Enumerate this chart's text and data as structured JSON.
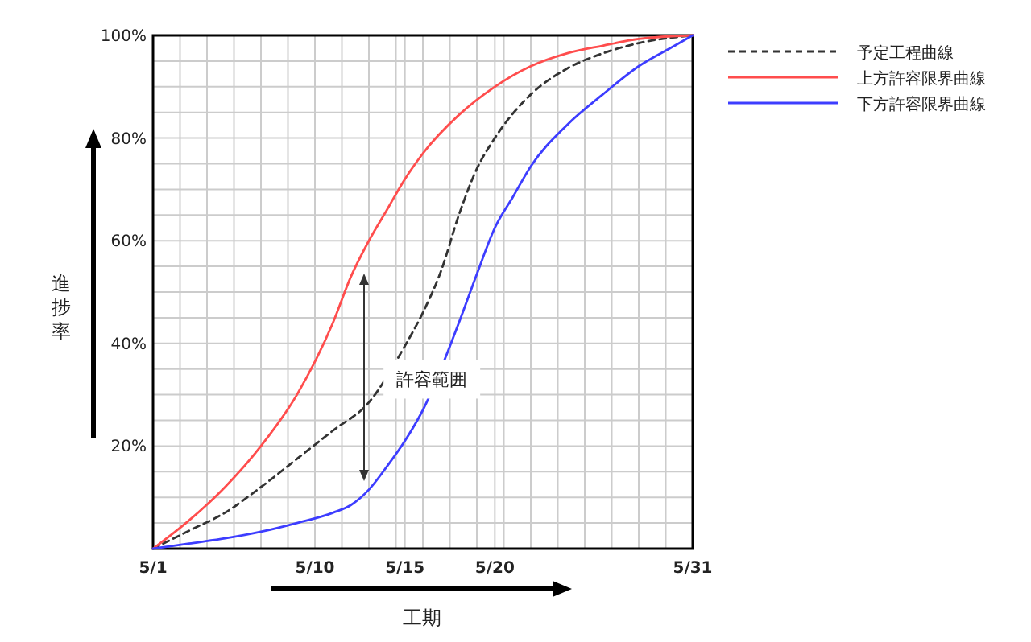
{
  "chart_data": {
    "type": "line",
    "xlabel": "工期",
    "ylabel": "進捗率",
    "xlim": [
      "--05-01",
      "--05-31"
    ],
    "xticks": [
      {
        "value": "--05-01",
        "label": "5/1"
      },
      {
        "value": "--05-02T12:00",
        "label": null
      },
      {
        "value": "--05-04",
        "label": null
      },
      {
        "value": "--05-05T12:00",
        "label": null
      },
      {
        "value": "--05-07",
        "label": null
      },
      {
        "value": "--05-08T12:00",
        "label": null
      },
      {
        "value": "--05-10",
        "label": "5/10"
      },
      {
        "value": "--05-11T12:00",
        "label": null
      },
      {
        "value": "--05-13",
        "label": null
      },
      {
        "value": "--05-14T12:00",
        "label": null
      },
      {
        "value": "--05-15",
        "label": "5/15"
      },
      {
        "value": "--05-16",
        "label": null
      },
      {
        "value": "--05-17T12:00",
        "label": null
      },
      {
        "value": "--05-19",
        "label": null
      },
      {
        "value": "--05-20",
        "label": "5/20"
      },
      {
        "value": "--05-20T12:00",
        "label": null
      },
      {
        "value": "--05-22",
        "label": null
      },
      {
        "value": "--05-23T12:00",
        "label": null
      },
      {
        "value": "--05-25",
        "label": null
      },
      {
        "value": "--05-26T12:00",
        "label": null
      },
      {
        "value": "--05-28",
        "label": null
      },
      {
        "value": "--05-29T12:00",
        "label": null
      },
      {
        "value": "--05-31",
        "label": "5/31"
      }
    ],
    "ylim": [
      0,
      100
    ],
    "yticks": [
      {
        "value": 0,
        "label": null
      },
      {
        "value": 5,
        "label": null
      },
      {
        "value": 10,
        "label": null
      },
      {
        "value": 15,
        "label": null
      },
      {
        "value": 20,
        "label": "20%"
      },
      {
        "value": 25,
        "label": null
      },
      {
        "value": 30,
        "label": null
      },
      {
        "value": 35,
        "label": null
      },
      {
        "value": 40,
        "label": "40%"
      },
      {
        "value": 45,
        "label": null
      },
      {
        "value": 50,
        "label": null
      },
      {
        "value": 55,
        "label": null
      },
      {
        "value": 60,
        "label": "60%"
      },
      {
        "value": 65,
        "label": null
      },
      {
        "value": 70,
        "label": null
      },
      {
        "value": 75,
        "label": null
      },
      {
        "value": 80,
        "label": "80%"
      },
      {
        "value": 85,
        "label": null
      },
      {
        "value": 90,
        "label": null
      },
      {
        "value": 95,
        "label": null
      },
      {
        "value": 100,
        "label": "100%"
      }
    ],
    "grid": true,
    "legend": "top right",
    "marker": "none",
    "annotations": [
      {
        "text": "許容範囲",
        "x": "--05-16T12:00",
        "y": 33
      }
    ],
    "series": [
      {
        "name": "予定工程曲線",
        "color": "#333333",
        "line_style": "dashed",
        "x": [
          "--05-01",
          "--05-03",
          "--05-05",
          "--05-07",
          "--05-09",
          "--05-11",
          "--05-13",
          "--05-14",
          "--05-15",
          "--05-16",
          "--05-17",
          "--05-18",
          "--05-19",
          "--05-20",
          "--05-22",
          "--05-24",
          "--05-26",
          "--05-28",
          "--05-31"
        ],
        "values": [
          0,
          3.5,
          7,
          12,
          17.5,
          23,
          28.5,
          null,
          39.5,
          46,
          54,
          65,
          74,
          80,
          88.5,
          93.5,
          96.5,
          98.5,
          100
        ]
      },
      {
        "name": "上方許容限界曲線",
        "color": "#ff4d4d",
        "line_style": "solid",
        "x": [
          "--05-01",
          "--05-03",
          "--05-05",
          "--05-07",
          "--05-09",
          "--05-11",
          "--05-12",
          "--05-13",
          "--05-14",
          "--05-15",
          "--05-16",
          "--05-18",
          "--05-20",
          "--05-22",
          "--05-24",
          "--05-26",
          "--05-28",
          "--05-31"
        ],
        "values": [
          0,
          5.5,
          12,
          20,
          30,
          44,
          53,
          60,
          66,
          72,
          77,
          84.5,
          90,
          94,
          96.5,
          98,
          99.3,
          100
        ]
      },
      {
        "name": "下方許容限界曲線",
        "color": "#3d3dff",
        "line_style": "solid",
        "x": [
          "--05-01",
          "--05-03",
          "--05-05",
          "--05-07",
          "--05-09",
          "--05-11",
          "--05-12",
          "--05-13",
          "--05-14",
          "--05-15",
          "--05-16",
          "--05-17",
          "--05-18",
          "--05-19",
          "--05-20",
          "--05-21",
          "--05-22",
          "--05-24",
          "--05-26",
          "--05-28",
          "--05-30",
          "--05-31"
        ],
        "values": [
          0,
          1,
          2,
          3.3,
          5,
          7,
          8.5,
          11.5,
          16,
          21,
          27,
          null,
          44,
          53.5,
          62.5,
          68.5,
          74.5,
          82.5,
          88.5,
          94,
          98,
          100
        ]
      }
    ]
  }
}
